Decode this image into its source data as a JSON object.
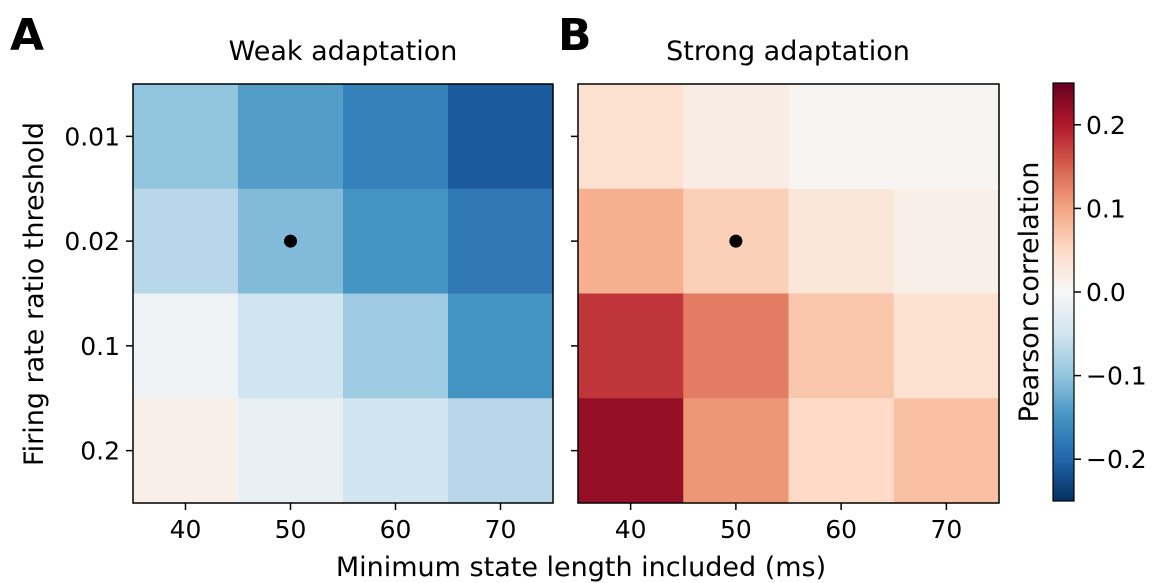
{
  "chart_data": [
    {
      "type": "heatmap",
      "panel_letter": "A",
      "title": "Weak adaptation",
      "xlabel": "Minimum state length included (ms)",
      "ylabel": "Firing rate ratio threshold",
      "x": [
        "40",
        "50",
        "60",
        "70"
      ],
      "y": [
        "0.01",
        "0.02",
        "0.1",
        "0.2"
      ],
      "values": [
        [
          -0.1,
          -0.14,
          -0.17,
          -0.21
        ],
        [
          -0.07,
          -0.11,
          -0.15,
          -0.18
        ],
        [
          -0.01,
          -0.05,
          -0.09,
          -0.15
        ],
        [
          0.015,
          -0.02,
          -0.05,
          -0.07
        ]
      ],
      "marker": {
        "x": "50",
        "y": "0.02"
      }
    },
    {
      "type": "heatmap",
      "panel_letter": "B",
      "title": "Strong adaptation",
      "xlabel": "Minimum state length included (ms)",
      "ylabel": "Firing rate ratio threshold",
      "x": [
        "40",
        "50",
        "60",
        "70"
      ],
      "y": [
        "0.01",
        "0.02",
        "0.1",
        "0.2"
      ],
      "values": [
        [
          0.04,
          0.02,
          0.005,
          0.005
        ],
        [
          0.09,
          0.06,
          0.03,
          0.015
        ],
        [
          0.18,
          0.13,
          0.07,
          0.04
        ],
        [
          0.22,
          0.11,
          0.05,
          0.075
        ]
      ],
      "marker": {
        "x": "50",
        "y": "0.02"
      }
    }
  ],
  "colorbar": {
    "label": "Pearson correlation",
    "vmin": -0.25,
    "vmax": 0.25,
    "ticks": [
      0.2,
      0.1,
      0.0,
      -0.1,
      -0.2
    ],
    "tick_labels": [
      "0.2",
      "0.1",
      "0.0",
      "−0.1",
      "−0.2"
    ],
    "colormap": "RdBu_r"
  }
}
